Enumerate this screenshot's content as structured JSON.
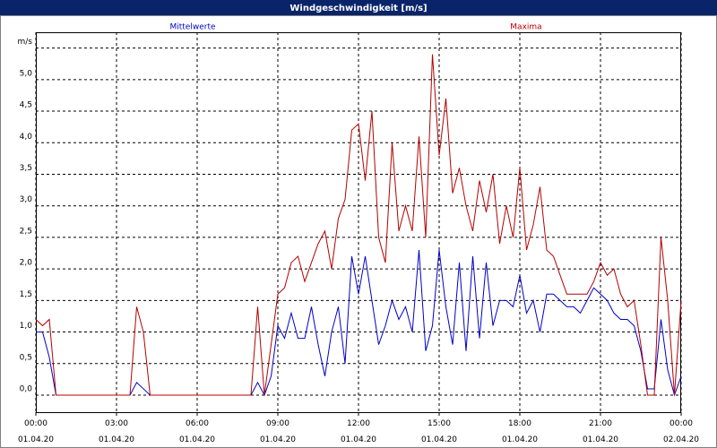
{
  "chart_data": {
    "type": "line",
    "title": "Windgeschwindigkeit [m/s]",
    "x": [
      0,
      0.25,
      0.5,
      0.75,
      1,
      1.25,
      1.5,
      1.75,
      2,
      2.25,
      2.5,
      2.75,
      3,
      3.25,
      3.5,
      3.75,
      4,
      4.25,
      4.5,
      4.75,
      5,
      5.25,
      5.5,
      5.75,
      6,
      6.25,
      6.5,
      6.75,
      7,
      7.25,
      7.5,
      7.75,
      8,
      8.25,
      8.5,
      8.75,
      9,
      9.25,
      9.5,
      9.75,
      10,
      10.25,
      10.5,
      10.75,
      11,
      11.25,
      11.5,
      11.75,
      12,
      12.25,
      12.5,
      12.75,
      13,
      13.25,
      13.5,
      13.75,
      14,
      14.25,
      14.5,
      14.75,
      15,
      15.25,
      15.5,
      15.75,
      16,
      16.25,
      16.5,
      16.75,
      17,
      17.25,
      17.5,
      17.75,
      18,
      18.25,
      18.5,
      18.75,
      19,
      19.25,
      19.5,
      19.75,
      20,
      20.25,
      20.5,
      20.75,
      21,
      21.25,
      21.5,
      21.75,
      22,
      22.25,
      22.5,
      22.75,
      23,
      23.25,
      23.5,
      23.75,
      24
    ],
    "series": [
      {
        "name": "Mittelwerte",
        "color": "#0000c8",
        "values": [
          1.0,
          1.0,
          0.6,
          0,
          0,
          0,
          0,
          0,
          0,
          0,
          0,
          0,
          0,
          0,
          0,
          0.2,
          0.1,
          0,
          0,
          0,
          0,
          0,
          0,
          0,
          0,
          0,
          0,
          0,
          0,
          0,
          0,
          0,
          0,
          0.2,
          0,
          0.3,
          1.1,
          0.9,
          1.3,
          0.9,
          0.9,
          1.4,
          0.8,
          0.3,
          1.0,
          1.4,
          0.5,
          2.2,
          1.6,
          2.2,
          1.5,
          0.8,
          1.1,
          1.5,
          1.2,
          1.4,
          1.0,
          2.3,
          0.7,
          1.1,
          2.3,
          1.4,
          0.8,
          2.1,
          0.7,
          2.2,
          0.9,
          2.1,
          1.1,
          1.5,
          1.5,
          1.4,
          1.9,
          1.3,
          1.5,
          1.0,
          1.6,
          1.6,
          1.5,
          1.4,
          1.4,
          1.3,
          1.5,
          1.7,
          1.6,
          1.5,
          1.3,
          1.2,
          1.2,
          1.1,
          0.7,
          0.1,
          0.1,
          1.2,
          0.4,
          0,
          0.3
        ]
      },
      {
        "name": "Maxima",
        "color": "#b40000",
        "values": [
          1.2,
          1.1,
          1.2,
          0,
          0,
          0,
          0,
          0,
          0,
          0,
          0,
          0,
          0,
          0,
          0,
          1.4,
          1.0,
          0,
          0,
          0,
          0,
          0,
          0,
          0,
          0,
          0,
          0,
          0,
          0,
          0,
          0,
          0,
          0,
          1.4,
          0,
          0.8,
          1.6,
          1.7,
          2.1,
          2.2,
          1.8,
          2.1,
          2.4,
          2.6,
          2.0,
          2.8,
          3.1,
          4.2,
          4.3,
          3.4,
          4.5,
          2.5,
          2.1,
          4.0,
          2.6,
          3.0,
          2.6,
          4.1,
          2.5,
          5.4,
          3.8,
          4.7,
          3.2,
          3.6,
          3.0,
          2.6,
          3.4,
          2.9,
          3.5,
          2.4,
          3.0,
          2.5,
          3.6,
          2.3,
          2.7,
          3.3,
          2.3,
          2.2,
          1.9,
          1.6,
          1.6,
          1.6,
          1.6,
          1.8,
          2.1,
          1.9,
          2.0,
          1.6,
          1.4,
          1.5,
          0.8,
          0,
          0,
          2.5,
          1.5,
          0,
          1.5
        ]
      }
    ],
    "xlim": [
      0,
      24
    ],
    "xticks": [
      {
        "value": 0,
        "label": "00:00\n01.04.20"
      },
      {
        "value": 3,
        "label": "03:00\n01.04.20"
      },
      {
        "value": 6,
        "label": "06:00\n01.04.20"
      },
      {
        "value": 9,
        "label": "09:00\n01.04.20"
      },
      {
        "value": 12,
        "label": "12:00\n01.04.20"
      },
      {
        "value": 15,
        "label": "15:00\n01.04.20"
      },
      {
        "value": 18,
        "label": "18:00\n01.04.20"
      },
      {
        "value": 21,
        "label": "21:00\n01.04.20"
      },
      {
        "value": 24,
        "label": "00:00\n02.04.20"
      }
    ],
    "ylim": [
      -0.27,
      6.02
    ],
    "yticks": [
      {
        "value": 0,
        "label": "0,0"
      },
      {
        "value": 0.5,
        "label": "0,5"
      },
      {
        "value": 1,
        "label": "1,0"
      },
      {
        "value": 1.5,
        "label": "1,5"
      },
      {
        "value": 2,
        "label": "2,0"
      },
      {
        "value": 2.5,
        "label": "2,5"
      },
      {
        "value": 3,
        "label": "3,0"
      },
      {
        "value": 3.5,
        "label": "3,5"
      },
      {
        "value": 4,
        "label": "4,0"
      },
      {
        "value": 4.5,
        "label": "4,5"
      },
      {
        "value": 5,
        "label": "5,0"
      },
      {
        "value": 5.5,
        "label": "m/s"
      }
    ],
    "grid": true
  }
}
